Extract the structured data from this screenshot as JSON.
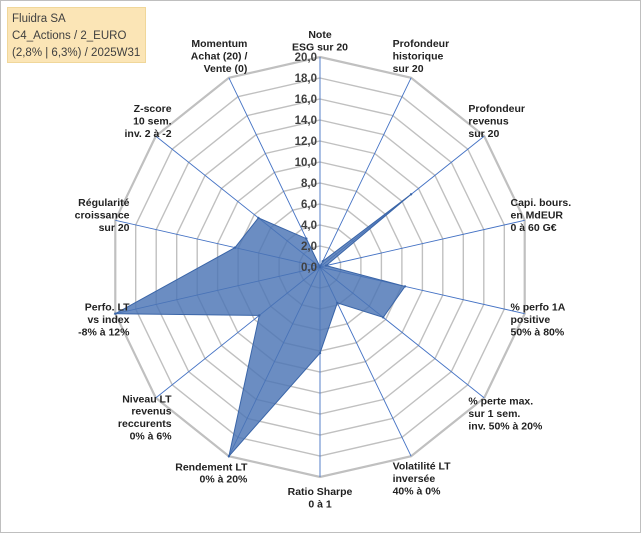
{
  "info": {
    "line1": "Fluidra SA",
    "line2": "C4_Actions / 2_EURO",
    "line3": "(2,8% | 6,3%) / 2025W31"
  },
  "colors": {
    "grid": "#c0c0c0",
    "spoke": "#4472c4",
    "fill": "#4a74b4",
    "fill_opacity": 0.82,
    "info_bg": "#fbe5b6"
  },
  "chart_data": {
    "type": "radar",
    "title": "",
    "rmin": 0,
    "rmax": 20,
    "tick_step": 2,
    "tick_labels": [
      "0,0",
      "2,0",
      "4,0",
      "6,0",
      "8,0",
      "10,0",
      "12,0",
      "14,0",
      "16,0",
      "18,0",
      "20,0"
    ],
    "grid": true,
    "axes": [
      {
        "label": [
          "Note",
          "ESG sur 20"
        ],
        "value": 0
      },
      {
        "label": [
          "Profondeur",
          "historique",
          "sur 20"
        ],
        "value": 0.6
      },
      {
        "label": [
          "Profondeur",
          "revenus",
          "sur 20"
        ],
        "value": 11.1
      },
      {
        "label": [
          "Capi. bours.",
          "en MdEUR",
          "0 à 60 G€"
        ],
        "value": 0.6
      },
      {
        "label": [
          "% perfo 1A",
          "positive",
          "50% à 80%"
        ],
        "value": 8.3
      },
      {
        "label": [
          "% perte max.",
          "sur 1 sem.",
          "inv. 50% à 20%"
        ],
        "value": 7.7
      },
      {
        "label": [
          "Volatilité LT",
          "inversée",
          "40% à 0%"
        ],
        "value": 3.8
      },
      {
        "label": [
          "Ratio Sharpe",
          "0 à 1"
        ],
        "value": 8.2
      },
      {
        "label": [
          "Rendement LT",
          "0% à 20%"
        ],
        "value": 20
      },
      {
        "label": [
          "Niveau LT",
          "revenus",
          "reccurents",
          "0% à 6%"
        ],
        "value": 7.4
      },
      {
        "label": [
          "Perfo. LT",
          "vs index",
          "-8% à 12%"
        ],
        "value": 20
      },
      {
        "label": [
          "Régularité",
          "croissance",
          "sur 20"
        ],
        "value": 8.3
      },
      {
        "label": [
          "Z-score",
          "10 sem.",
          "inv. 2 à -2"
        ],
        "value": 7.5
      },
      {
        "label": [
          "Momentum",
          "Achat (20) /",
          "Vente (0)"
        ],
        "value": 3.0
      }
    ]
  }
}
